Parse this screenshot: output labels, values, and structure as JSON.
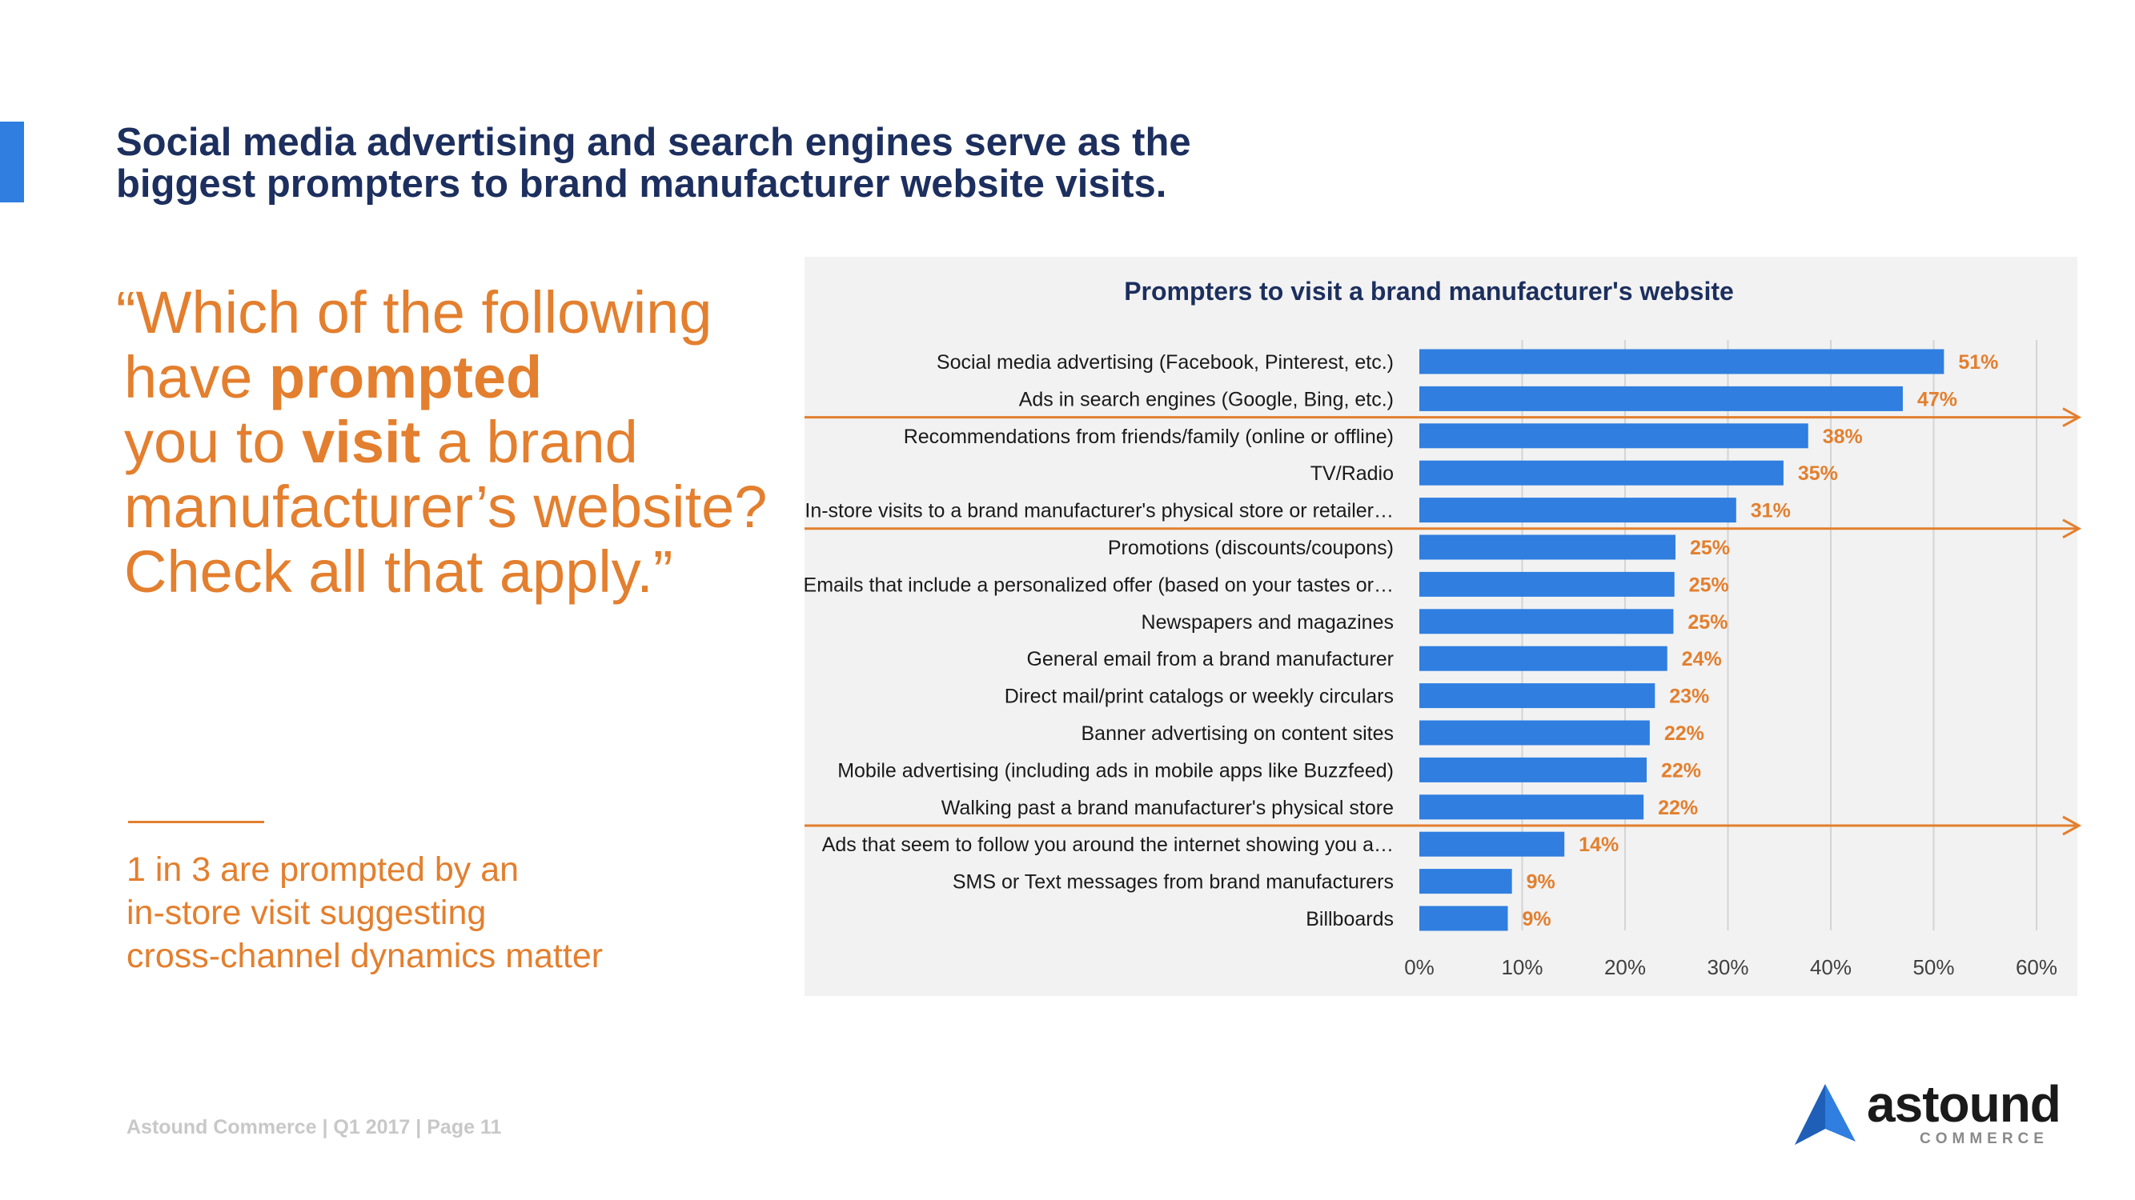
{
  "slide": {
    "headline": "Social media advertising and search engines serve as the biggest prompters to brand manufacturer website visits.",
    "question": {
      "l1": "“Which of the following",
      "l2_pre": "have ",
      "l2_bold": "prompted",
      "l3_pre": "you to ",
      "l3_bold": "visit",
      "l3_post": " a brand",
      "l4": "manufacturer’s website?",
      "l5": "Check all that apply.”"
    },
    "insight": {
      "l1": "1 in 3 are prompted by an",
      "l2": "in-store visit suggesting",
      "l3": "cross-channel dynamics matter"
    },
    "footer": "Astound Commerce | Q1 2017 | Page 11",
    "logo": {
      "word": "astound",
      "sub": "COMMERCE"
    }
  },
  "colors": {
    "accent": "#2f7ee0",
    "bar": "#2f7ee0",
    "orange": "#e37f2e",
    "navy": "#1c2f5e"
  },
  "chart_data": {
    "type": "bar",
    "orientation": "horizontal",
    "title": "Prompters to visit a brand manufacturer's website",
    "categories": [
      "Social media advertising (Facebook, Pinterest, etc.)",
      "Ads in search engines (Google, Bing, etc.)",
      "Recommendations from friends/family (online or offline)",
      "TV/Radio",
      "In-store visits to a brand manufacturer's physical store or retailer…",
      "Promotions (discounts/coupons)",
      "Emails that include a personalized offer (based on your tastes or…",
      "Newspapers and magazines",
      "General email from a brand manufacturer",
      "Direct mail/print catalogs or weekly circulars",
      "Banner advertising on content sites",
      "Mobile advertising (including ads in mobile apps like Buzzfeed)",
      "Walking past a brand manufacturer's physical store",
      "Ads that seem to follow you around the internet showing you a…",
      "SMS or Text messages from brand manufacturers",
      "Billboards"
    ],
    "values": [
      51,
      47,
      38,
      35,
      31,
      25,
      25,
      25,
      24,
      23,
      22,
      22,
      22,
      14,
      9,
      9
    ],
    "value_labels": [
      "51%",
      "47%",
      "38%",
      "35%",
      "31%",
      "25%",
      "25%",
      "25%",
      "24%",
      "23%",
      "22%",
      "22%",
      "22%",
      "14%",
      "9%",
      "9%"
    ],
    "plot_values": [
      51,
      47,
      37.8,
      35.4,
      30.8,
      24.9,
      24.8,
      24.7,
      24.1,
      22.9,
      22.4,
      22.1,
      21.8,
      14.1,
      9.0,
      8.6
    ],
    "xlim": [
      0,
      60
    ],
    "xticks": [
      "0%",
      "10%",
      "20%",
      "30%",
      "40%",
      "50%",
      "60%"
    ],
    "grid": true,
    "legend": "none",
    "highlight_dividers_after": [
      1,
      4,
      12
    ]
  }
}
